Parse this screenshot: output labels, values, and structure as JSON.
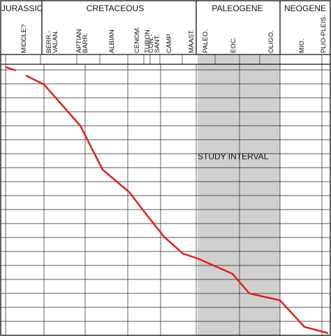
{
  "periods": [
    "JURASSIC",
    "CRETACEOUS",
    "PALEOGENE",
    "NEOGENE"
  ],
  "stages": [
    "MIDDLE?",
    "BERR.-VALAN.",
    "APTIAN BARR.",
    "ALBIAN",
    "CENOM.",
    "TURON.",
    "CON.-SANT.",
    "CAMP.",
    "MAAST.",
    "PALEO.",
    "EOC.",
    "OLIGO.",
    "MIO.",
    "PLIO-PLEIS."
  ],
  "study_interval": "STUDY INTERVAL"
}
